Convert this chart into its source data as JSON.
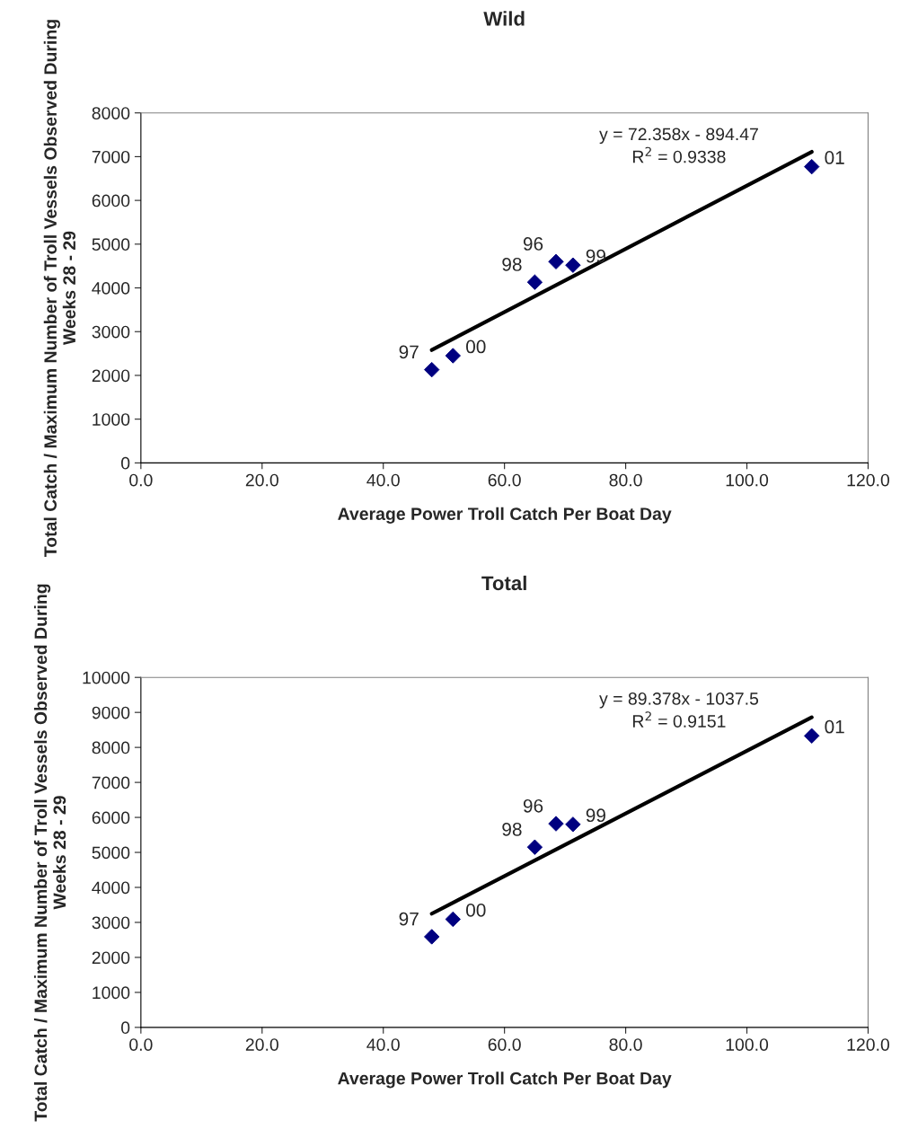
{
  "chart_data": [
    {
      "type": "scatter",
      "title": "Wild",
      "xlabel": "Average Power Troll Catch Per Boat Day",
      "ylabel": "Total Catch / Maximum Number of Troll Vessels Observed During Weeks 28 - 29",
      "xlim": [
        0,
        120
      ],
      "xticks": [
        {
          "value": 0,
          "label": "0.0"
        },
        {
          "value": 20,
          "label": "20.0"
        },
        {
          "value": 40,
          "label": "40.0"
        },
        {
          "value": 60,
          "label": "60.0"
        },
        {
          "value": 80,
          "label": "80.0"
        },
        {
          "value": 100,
          "label": "100.0"
        },
        {
          "value": 120,
          "label": "120.0"
        }
      ],
      "ylim": [
        0,
        8000
      ],
      "yticks": [
        0,
        1000,
        2000,
        3000,
        4000,
        5000,
        6000,
        7000,
        8000
      ],
      "grid": false,
      "legend": false,
      "series": [
        {
          "color": "#000080",
          "marker": "diamond",
          "x": [
            48.0,
            51.5,
            65.0,
            68.5,
            71.3,
            110.7
          ],
          "values": [
            2130,
            2450,
            4130,
            4600,
            4520,
            6770
          ]
        },
        {
          "type": "line",
          "color": "#000000",
          "marker": "none",
          "line_style": "solid",
          "x": [
            48.0,
            110.7
          ],
          "values": [
            2580,
            7110
          ]
        }
      ],
      "annotations": [
        "y = 72.358x - 894.47",
        "R$^{2}$ = 0.9338",
        {
          "text": "97",
          "x": 48.0,
          "y": 2130
        },
        {
          "text": "00",
          "x": 51.5,
          "y": 2450
        },
        {
          "text": "98",
          "x": 65.0,
          "y": 4130
        },
        {
          "text": "96",
          "x": 68.5,
          "y": 4600
        },
        {
          "text": "99",
          "x": 71.3,
          "y": 4520
        },
        {
          "text": "01",
          "x": 110.7,
          "y": 6770
        }
      ]
    },
    {
      "type": "scatter",
      "title": "Total",
      "xlabel": "Average Power Troll Catch Per Boat Day",
      "ylabel": "Total Catch / Maximum Number of Troll Vessels Observed During Weeks 28 - 29",
      "xlim": [
        0,
        120
      ],
      "xticks": [
        {
          "value": 0,
          "label": "0.0"
        },
        {
          "value": 20,
          "label": "20.0"
        },
        {
          "value": 40,
          "label": "40.0"
        },
        {
          "value": 60,
          "label": "60.0"
        },
        {
          "value": 80,
          "label": "80.0"
        },
        {
          "value": 100,
          "label": "100.0"
        },
        {
          "value": 120,
          "label": "120.0"
        }
      ],
      "ylim": [
        0,
        10000
      ],
      "yticks": [
        0,
        1000,
        2000,
        3000,
        4000,
        5000,
        6000,
        7000,
        8000,
        9000,
        10000
      ],
      "grid": false,
      "legend": false,
      "series": [
        {
          "color": "#000080",
          "marker": "diamond",
          "x": [
            48.0,
            51.5,
            65.0,
            68.5,
            71.3,
            110.7
          ],
          "values": [
            2590,
            3090,
            5150,
            5820,
            5800,
            8330
          ]
        },
        {
          "type": "line",
          "color": "#000000",
          "marker": "none",
          "line_style": "solid",
          "x": [
            48.0,
            110.7
          ],
          "values": [
            3250,
            8860
          ]
        }
      ],
      "annotations": [
        "y = 89.378x - 1037.5",
        "R$^{2}$ = 0.9151",
        {
          "text": "97",
          "x": 48.0,
          "y": 2590
        },
        {
          "text": "00",
          "x": 51.5,
          "y": 3090
        },
        {
          "text": "98",
          "x": 65.0,
          "y": 5150
        },
        {
          "text": "96",
          "x": 68.5,
          "y": 5820
        },
        {
          "text": "99",
          "x": 71.3,
          "y": 5800
        },
        {
          "text": "01",
          "x": 110.7,
          "y": 8330
        }
      ]
    }
  ]
}
